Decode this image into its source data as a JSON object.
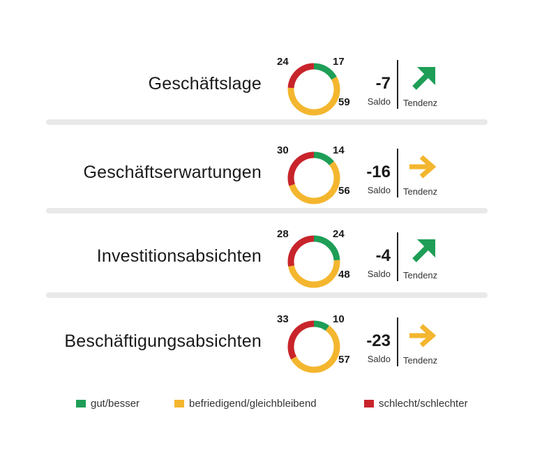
{
  "colors": {
    "green": "#1e9e57",
    "yellow": "#f4b62e",
    "red": "#c8242b",
    "separator": "#e9e9e9"
  },
  "chart_data": {
    "type": "pie",
    "style": "donut",
    "series_legend": [
      "gut/besser",
      "befriedigend/gleichbleibend",
      "schlecht/schlechter"
    ],
    "saldo_label": "Saldo",
    "tendenz_label": "Tendenz",
    "rows": [
      {
        "label": "Geschäftslage",
        "gut": 17,
        "befriedigend": 59,
        "schlecht": 24,
        "saldo": "-7",
        "tendenz": "up-right"
      },
      {
        "label": "Geschäftserwartungen",
        "gut": 14,
        "befriedigend": 56,
        "schlecht": 30,
        "saldo": "-16",
        "tendenz": "right"
      },
      {
        "label": "Investitionsabsichten",
        "gut": 24,
        "befriedigend": 48,
        "schlecht": 28,
        "saldo": "-4",
        "tendenz": "up-right"
      },
      {
        "label": "Beschäftigungsabsichten",
        "gut": 10,
        "befriedigend": 57,
        "schlecht": 33,
        "saldo": "-23",
        "tendenz": "right"
      }
    ]
  },
  "legend": [
    {
      "label": "gut/besser",
      "color_key": "green"
    },
    {
      "label": "befriedigend/gleichbleibend",
      "color_key": "yellow"
    },
    {
      "label": "schlecht/schlechter",
      "color_key": "red"
    }
  ]
}
